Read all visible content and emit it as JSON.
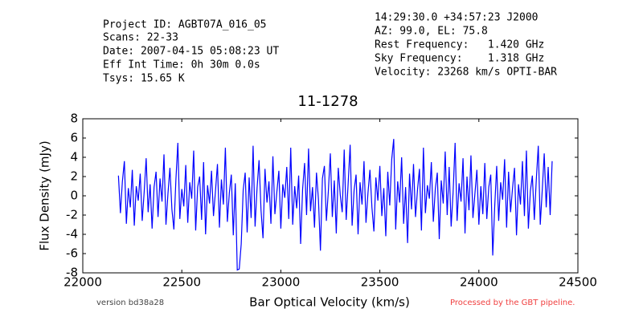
{
  "header": {
    "left": [
      "Project ID: AGBT07A_016_05",
      "Scans: 22-33",
      "Date: 2007-04-15 05:08:23 UT",
      "Eff Int Time: 0h 30m 0.0s",
      "Tsys: 15.65 K"
    ],
    "right": [
      "14:29:30.0 +34:57:23 J2000",
      "AZ: 99.0, EL: 75.8",
      "Rest Frequency:   1.420 GHz",
      "Sky Frequency:    1.318 GHz",
      "Velocity: 23268 km/s OPTI-BAR"
    ]
  },
  "footer": {
    "version": "version bd38a28",
    "pipeline": "Processed by the GBT pipeline."
  },
  "chart_data": {
    "type": "line",
    "title": "11-1278",
    "x_label": "Bar Optical Velocity (km/s)",
    "y_label": "Flux Density (mJy)",
    "xlim": [
      22000,
      24500
    ],
    "xticks": [
      22000,
      22500,
      23000,
      23500,
      24000,
      24500
    ],
    "ylim": [
      -8,
      8
    ],
    "yticks": [
      -8,
      -6,
      -4,
      -2,
      0,
      2,
      4,
      6,
      8
    ],
    "grid": false,
    "x": [
      22180,
      22190,
      22200,
      22210,
      22220,
      22230,
      22240,
      22250,
      22260,
      22270,
      22280,
      22290,
      22300,
      22310,
      22320,
      22330,
      22340,
      22350,
      22360,
      22370,
      22380,
      22390,
      22400,
      22410,
      22420,
      22430,
      22440,
      22450,
      22460,
      22470,
      22480,
      22490,
      22500,
      22510,
      22520,
      22530,
      22540,
      22550,
      22560,
      22570,
      22580,
      22590,
      22600,
      22610,
      22620,
      22630,
      22640,
      22650,
      22660,
      22670,
      22680,
      22690,
      22700,
      22710,
      22720,
      22730,
      22740,
      22750,
      22760,
      22770,
      22780,
      22790,
      22800,
      22810,
      22820,
      22830,
      22840,
      22850,
      22860,
      22870,
      22880,
      22890,
      22900,
      22910,
      22920,
      22930,
      22940,
      22950,
      22960,
      22970,
      22980,
      22990,
      23000,
      23010,
      23020,
      23030,
      23040,
      23050,
      23060,
      23070,
      23080,
      23090,
      23100,
      23110,
      23120,
      23130,
      23140,
      23150,
      23160,
      23170,
      23180,
      23190,
      23200,
      23210,
      23220,
      23230,
      23240,
      23250,
      23260,
      23270,
      23280,
      23290,
      23300,
      23310,
      23320,
      23330,
      23340,
      23350,
      23360,
      23370,
      23380,
      23390,
      23400,
      23410,
      23420,
      23430,
      23440,
      23450,
      23460,
      23470,
      23480,
      23490,
      23500,
      23510,
      23520,
      23530,
      23540,
      23550,
      23560,
      23570,
      23580,
      23590,
      23600,
      23610,
      23620,
      23630,
      23640,
      23650,
      23660,
      23670,
      23680,
      23690,
      23700,
      23710,
      23720,
      23730,
      23740,
      23750,
      23760,
      23770,
      23780,
      23790,
      23800,
      23810,
      23820,
      23830,
      23840,
      23850,
      23860,
      23870,
      23880,
      23890,
      23900,
      23910,
      23920,
      23930,
      23940,
      23950,
      23960,
      23970,
      23980,
      23990,
      24000,
      24010,
      24020,
      24030,
      24040,
      24050,
      24060,
      24070,
      24080,
      24090,
      24100,
      24110,
      24120,
      24130,
      24140,
      24150,
      24160,
      24170,
      24180,
      24190,
      24200,
      24210,
      24220,
      24230,
      24240,
      24250,
      24260,
      24270,
      24280,
      24290,
      24300,
      24310,
      24320,
      24330,
      24340,
      24350,
      24360,
      24370
    ],
    "series": [
      {
        "color": "#0000ff",
        "values": [
          2.1,
          -1.8,
          1.5,
          3.6,
          -2.9,
          0.8,
          -1.2,
          2.7,
          -3.1,
          1.0,
          -0.5,
          2.3,
          -2.6,
          0.4,
          3.9,
          -1.7,
          1.2,
          -3.4,
          0.9,
          2.5,
          -2.2,
          1.8,
          -0.6,
          4.3,
          -3.0,
          0.2,
          2.9,
          -1.4,
          -3.5,
          1.6,
          5.5,
          -2.4,
          0.7,
          -1.1,
          3.2,
          -2.8,
          1.4,
          -0.3,
          4.7,
          -3.6,
          0.9,
          2.0,
          -2.5,
          3.5,
          -4.0,
          1.1,
          -0.8,
          2.6,
          -2.1,
          0.5,
          3.3,
          -3.3,
          1.7,
          -0.9,
          5.0,
          -2.7,
          0.3,
          2.2,
          -4.1,
          1.3,
          -7.7,
          -7.6,
          -5.0,
          0.6,
          2.4,
          -3.8,
          1.9,
          -2.3,
          5.2,
          -3.2,
          0.8,
          3.7,
          -1.5,
          -4.4,
          2.8,
          -0.7,
          1.5,
          -2.9,
          4.1,
          -1.9,
          0.4,
          2.6,
          -3.4,
          1.2,
          -0.2,
          3.0,
          -2.4,
          5.0,
          -3.0,
          1.0,
          -1.3,
          2.1,
          -5.0,
          0.7,
          3.4,
          -2.0,
          4.9,
          -1.6,
          0.9,
          -3.3,
          2.4,
          -0.4,
          -5.7,
          1.8,
          3.1,
          -2.6,
          0.5,
          4.4,
          -2.2,
          1.6,
          -3.9,
          2.9,
          0.1,
          -1.7,
          4.8,
          -2.5,
          1.3,
          5.3,
          -3.1,
          0.6,
          2.2,
          -4.0,
          1.4,
          -0.9,
          3.6,
          -2.8,
          0.3,
          2.7,
          -1.2,
          -3.7,
          1.9,
          -0.5,
          3.1,
          -2.1,
          0.8,
          -4.2,
          2.5,
          -1.0,
          3.8,
          5.9,
          -3.5,
          1.5,
          -0.7,
          4.0,
          -2.9,
          0.9,
          -4.9,
          2.3,
          -1.4,
          3.3,
          -2.2,
          0.6,
          2.8,
          -3.6,
          5.0,
          -1.8,
          1.1,
          -0.3,
          3.5,
          -2.7,
          0.7,
          2.4,
          -4.5,
          1.6,
          -0.8,
          4.6,
          -2.0,
          3.0,
          -3.2,
          0.4,
          5.5,
          -2.6,
          1.3,
          -0.6,
          3.9,
          -3.9,
          2.0,
          -1.5,
          4.2,
          -2.3,
          0.2,
          2.7,
          -3.0,
          1.0,
          -1.9,
          3.4,
          -2.4,
          0.9,
          2.2,
          -6.2,
          -1.1,
          3.1,
          -2.6,
          1.4,
          -0.4,
          3.8,
          -3.3,
          2.5,
          -1.7,
          0.8,
          2.9,
          -4.1,
          1.2,
          -0.9,
          3.6,
          -2.1,
          4.7,
          -3.4,
          0.5,
          2.1,
          -2.5,
          1.7,
          5.2,
          -3.0,
          0.6,
          4.4,
          -1.2,
          3.0,
          -2.0,
          3.6
        ]
      }
    ]
  }
}
